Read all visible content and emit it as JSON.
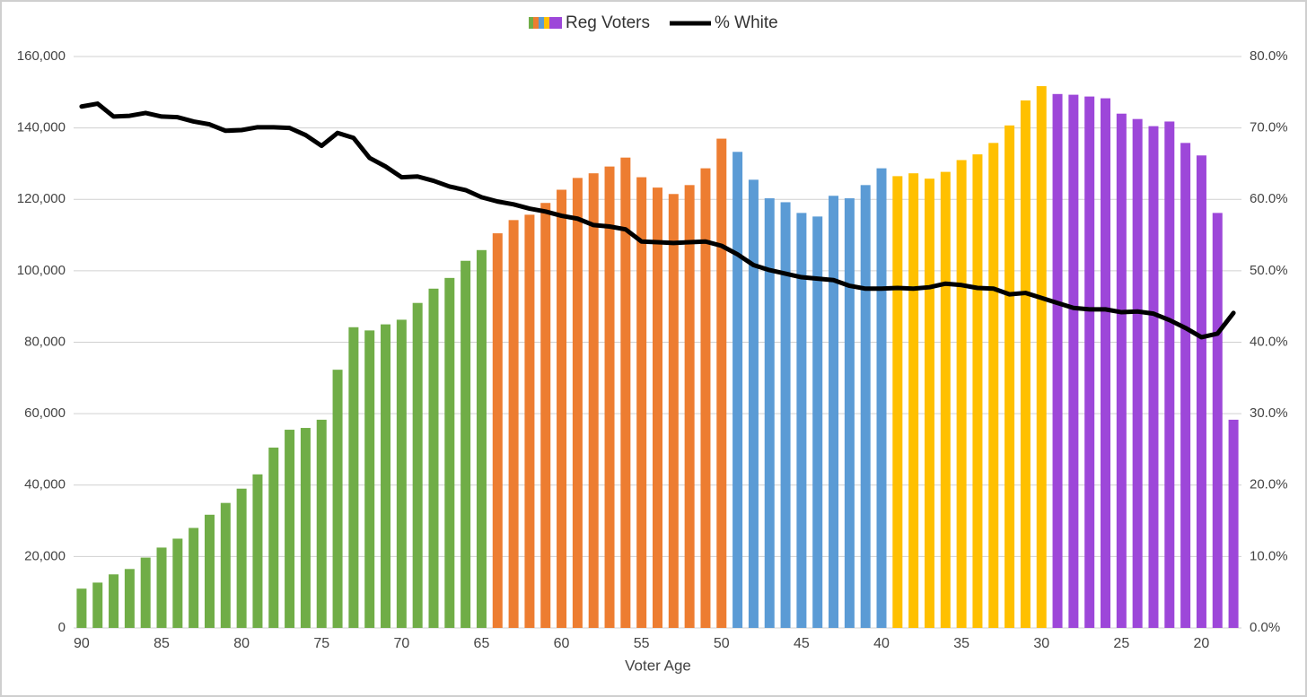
{
  "chart_data": {
    "type": "bar_line",
    "xlabel": "Voter Age",
    "categories": [
      "90",
      null,
      null,
      null,
      null,
      "85",
      null,
      null,
      null,
      null,
      "80",
      null,
      null,
      null,
      null,
      "75",
      null,
      null,
      null,
      null,
      "70",
      null,
      null,
      null,
      null,
      "65",
      null,
      null,
      null,
      null,
      "60",
      null,
      null,
      null,
      null,
      "55",
      null,
      null,
      null,
      null,
      "50",
      null,
      null,
      null,
      null,
      "45",
      null,
      null,
      null,
      null,
      "40",
      null,
      null,
      null,
      null,
      "35",
      null,
      null,
      null,
      null,
      "30",
      null,
      null,
      null,
      null,
      "25",
      null,
      null,
      null,
      null,
      "20",
      null,
      null
    ],
    "series": [
      {
        "name": "Reg Voters",
        "type": "bar",
        "colors": [
          "#70ad47",
          "#70ad47",
          "#70ad47",
          "#70ad47",
          "#70ad47",
          "#70ad47",
          "#70ad47",
          "#70ad47",
          "#70ad47",
          "#70ad47",
          "#70ad47",
          "#70ad47",
          "#70ad47",
          "#70ad47",
          "#70ad47",
          "#70ad47",
          "#70ad47",
          "#70ad47",
          "#70ad47",
          "#70ad47",
          "#70ad47",
          "#70ad47",
          "#70ad47",
          "#70ad47",
          "#70ad47",
          "#70ad47",
          "#ed7d31",
          "#ed7d31",
          "#ed7d31",
          "#ed7d31",
          "#ed7d31",
          "#ed7d31",
          "#ed7d31",
          "#ed7d31",
          "#ed7d31",
          "#ed7d31",
          "#ed7d31",
          "#ed7d31",
          "#ed7d31",
          "#ed7d31",
          "#ed7d31",
          "#5b9bd5",
          "#5b9bd5",
          "#5b9bd5",
          "#5b9bd5",
          "#5b9bd5",
          "#5b9bd5",
          "#5b9bd5",
          "#5b9bd5",
          "#5b9bd5",
          "#5b9bd5",
          "#ffc000",
          "#ffc000",
          "#ffc000",
          "#ffc000",
          "#ffc000",
          "#ffc000",
          "#ffc000",
          "#ffc000",
          "#ffc000",
          "#ffc000",
          "#9d47d9",
          "#9d47d9",
          "#9d47d9",
          "#9d47d9",
          "#9d47d9",
          "#9d47d9",
          "#9d47d9",
          "#9d47d9",
          "#9d47d9",
          "#9d47d9",
          "#9d47d9",
          "#9d47d9"
        ],
        "values": [
          11000,
          12700,
          15000,
          16500,
          19700,
          22500,
          25000,
          28000,
          31700,
          35000,
          39000,
          43000,
          50500,
          55500,
          56000,
          58300,
          72300,
          84200,
          83300,
          85000,
          86300,
          91000,
          95000,
          98000,
          102800,
          105800,
          110500,
          114200,
          115700,
          119000,
          122700,
          126000,
          127300,
          129200,
          131700,
          126200,
          123300,
          121500,
          124000,
          128700,
          137000,
          133300,
          125500,
          120300,
          119200,
          116200,
          115200,
          121000,
          120300,
          124000,
          128700,
          126500,
          127300,
          125800,
          127700,
          131000,
          132600,
          135800,
          140700,
          147700,
          151700,
          149500,
          149300,
          148800,
          148300,
          144000,
          142500,
          140500,
          141800,
          135800,
          132300,
          116200,
          58300
        ]
      },
      {
        "name": "% White",
        "type": "line",
        "axis": "y2",
        "color": "#000000",
        "values": [
          73.0,
          73.4,
          71.6,
          71.7,
          72.1,
          71.6,
          71.5,
          70.9,
          70.5,
          69.6,
          69.7,
          70.1,
          70.1,
          70.0,
          69.0,
          67.5,
          69.3,
          68.6,
          65.8,
          64.6,
          63.1,
          63.2,
          62.6,
          61.8,
          61.3,
          60.3,
          59.7,
          59.3,
          58.7,
          58.3,
          57.7,
          57.3,
          56.4,
          56.2,
          55.8,
          54.1,
          54.0,
          53.9,
          54.0,
          54.1,
          53.5,
          52.3,
          50.8,
          50.1,
          49.6,
          49.1,
          48.9,
          48.7,
          47.9,
          47.5,
          47.5,
          47.6,
          47.5,
          47.7,
          48.2,
          48.0,
          47.6,
          47.5,
          46.7,
          46.9,
          46.2,
          45.5,
          44.8,
          44.6,
          44.6,
          44.2,
          44.3,
          44.0,
          43.1,
          42.0,
          40.7,
          41.2,
          44.1
        ]
      }
    ],
    "ylim": [
      0,
      160000
    ],
    "yticks": [
      0,
      {
        "value": 20000,
        "label": "20,000"
      },
      {
        "value": 40000,
        "label": "40,000"
      },
      {
        "value": 60000,
        "label": "60,000"
      },
      {
        "value": 80000,
        "label": "80,000"
      },
      {
        "value": 100000,
        "label": "100,000"
      },
      {
        "value": 120000,
        "label": "120,000"
      },
      {
        "value": 140000,
        "label": "140,000"
      },
      {
        "value": 160000,
        "label": "160,000"
      }
    ],
    "y2lim": [
      0,
      80
    ],
    "y2ticks": [
      {
        "value": 0,
        "label": "0.0%"
      },
      {
        "value": 10,
        "label": "10.0%"
      },
      {
        "value": 20,
        "label": "20.0%"
      },
      {
        "value": 30,
        "label": "30.0%"
      },
      {
        "value": 40,
        "label": "40.0%"
      },
      {
        "value": 50,
        "label": "50.0%"
      },
      {
        "value": 60,
        "label": "60.0%"
      },
      {
        "value": 70,
        "label": "70.0%"
      },
      {
        "value": 80,
        "label": "80.0%"
      }
    ],
    "grid": true,
    "legend": "top"
  }
}
